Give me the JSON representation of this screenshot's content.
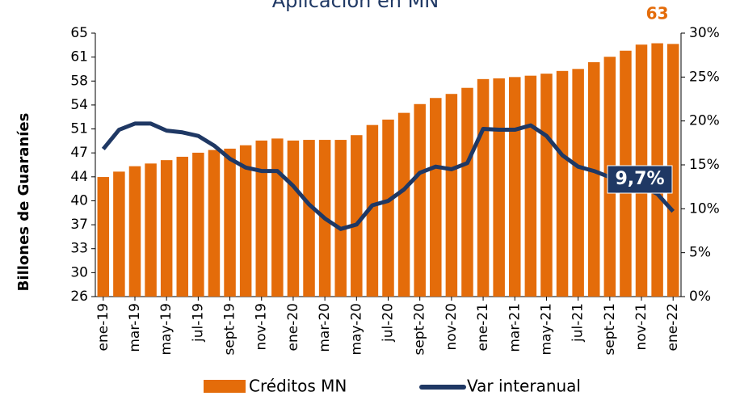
{
  "chart_data": {
    "type": "bar_line",
    "title": "Aplicación en MN",
    "y_label": "Billones de Guaraníes",
    "categories": [
      "ene-19",
      null,
      "mar-19",
      null,
      "may-19",
      null,
      "jul-19",
      null,
      "sept-19",
      null,
      "nov-19",
      null,
      "ene-20",
      null,
      "mar-20",
      null,
      "may-20",
      null,
      "jul-20",
      null,
      "sept-20",
      null,
      "nov-20",
      null,
      "ene-21",
      null,
      "mar-21",
      null,
      "may-21",
      null,
      "jul-21",
      null,
      "sept-21",
      null,
      "nov-21",
      null,
      "ene-22"
    ],
    "series": [
      {
        "name": "Créditos MN",
        "color": "#E46C0A",
        "kind": "bar",
        "values": [
          43.7,
          44.5,
          45.3,
          45.7,
          46.2,
          46.7,
          47.3,
          47.7,
          47.9,
          48.4,
          49.1,
          49.4,
          49.1,
          49.2,
          49.2,
          49.2,
          49.9,
          51.4,
          52.2,
          53.2,
          54.5,
          55.4,
          56.0,
          56.9,
          58.2,
          58.3,
          58.5,
          58.7,
          59.0,
          59.4,
          59.7,
          60.7,
          61.5,
          62.4,
          63.3,
          63.5,
          63.4
        ]
      },
      {
        "name": "Var interanual",
        "color": "#1F3864",
        "kind": "line",
        "axis": "y2",
        "values": [
          16.8,
          19.0,
          19.7,
          19.7,
          18.9,
          18.7,
          18.3,
          17.2,
          15.7,
          14.7,
          14.3,
          14.3,
          12.6,
          10.5,
          8.9,
          7.7,
          8.2,
          10.4,
          10.9,
          12.2,
          14.1,
          14.8,
          14.5,
          15.2,
          19.1,
          19.0,
          19.0,
          19.5,
          18.3,
          16.1,
          14.8,
          14.3,
          13.6,
          13.1,
          12.6,
          11.7,
          9.7
        ]
      }
    ],
    "annotations": [
      "63",
      "9,7%"
    ],
    "ylim": [
      26,
      65
    ],
    "yticks": [
      26,
      {
        "value": 29.545,
        "label": "30"
      },
      {
        "value": 33.091,
        "label": "33"
      },
      {
        "value": 36.636,
        "label": "37"
      },
      {
        "value": 40.182,
        "label": "40"
      },
      {
        "value": 43.727,
        "label": "44"
      },
      {
        "value": 47.273,
        "label": "47"
      },
      {
        "value": 50.818,
        "label": "51"
      },
      {
        "value": 54.364,
        "label": "54"
      },
      {
        "value": 57.909,
        "label": "58"
      },
      {
        "value": 61.455,
        "label": "61"
      },
      65
    ],
    "y2lim": [
      0,
      30
    ],
    "y2ticks": [
      {
        "value": 0,
        "label": "0%"
      },
      {
        "value": 5,
        "label": "5%"
      },
      {
        "value": 10,
        "label": "10%"
      },
      {
        "value": 15,
        "label": "15%"
      },
      {
        "value": 20,
        "label": "20%"
      },
      {
        "value": 25,
        "label": "25%"
      },
      {
        "value": 30,
        "label": "30%"
      }
    ],
    "grid": false,
    "legend": "bottom"
  }
}
